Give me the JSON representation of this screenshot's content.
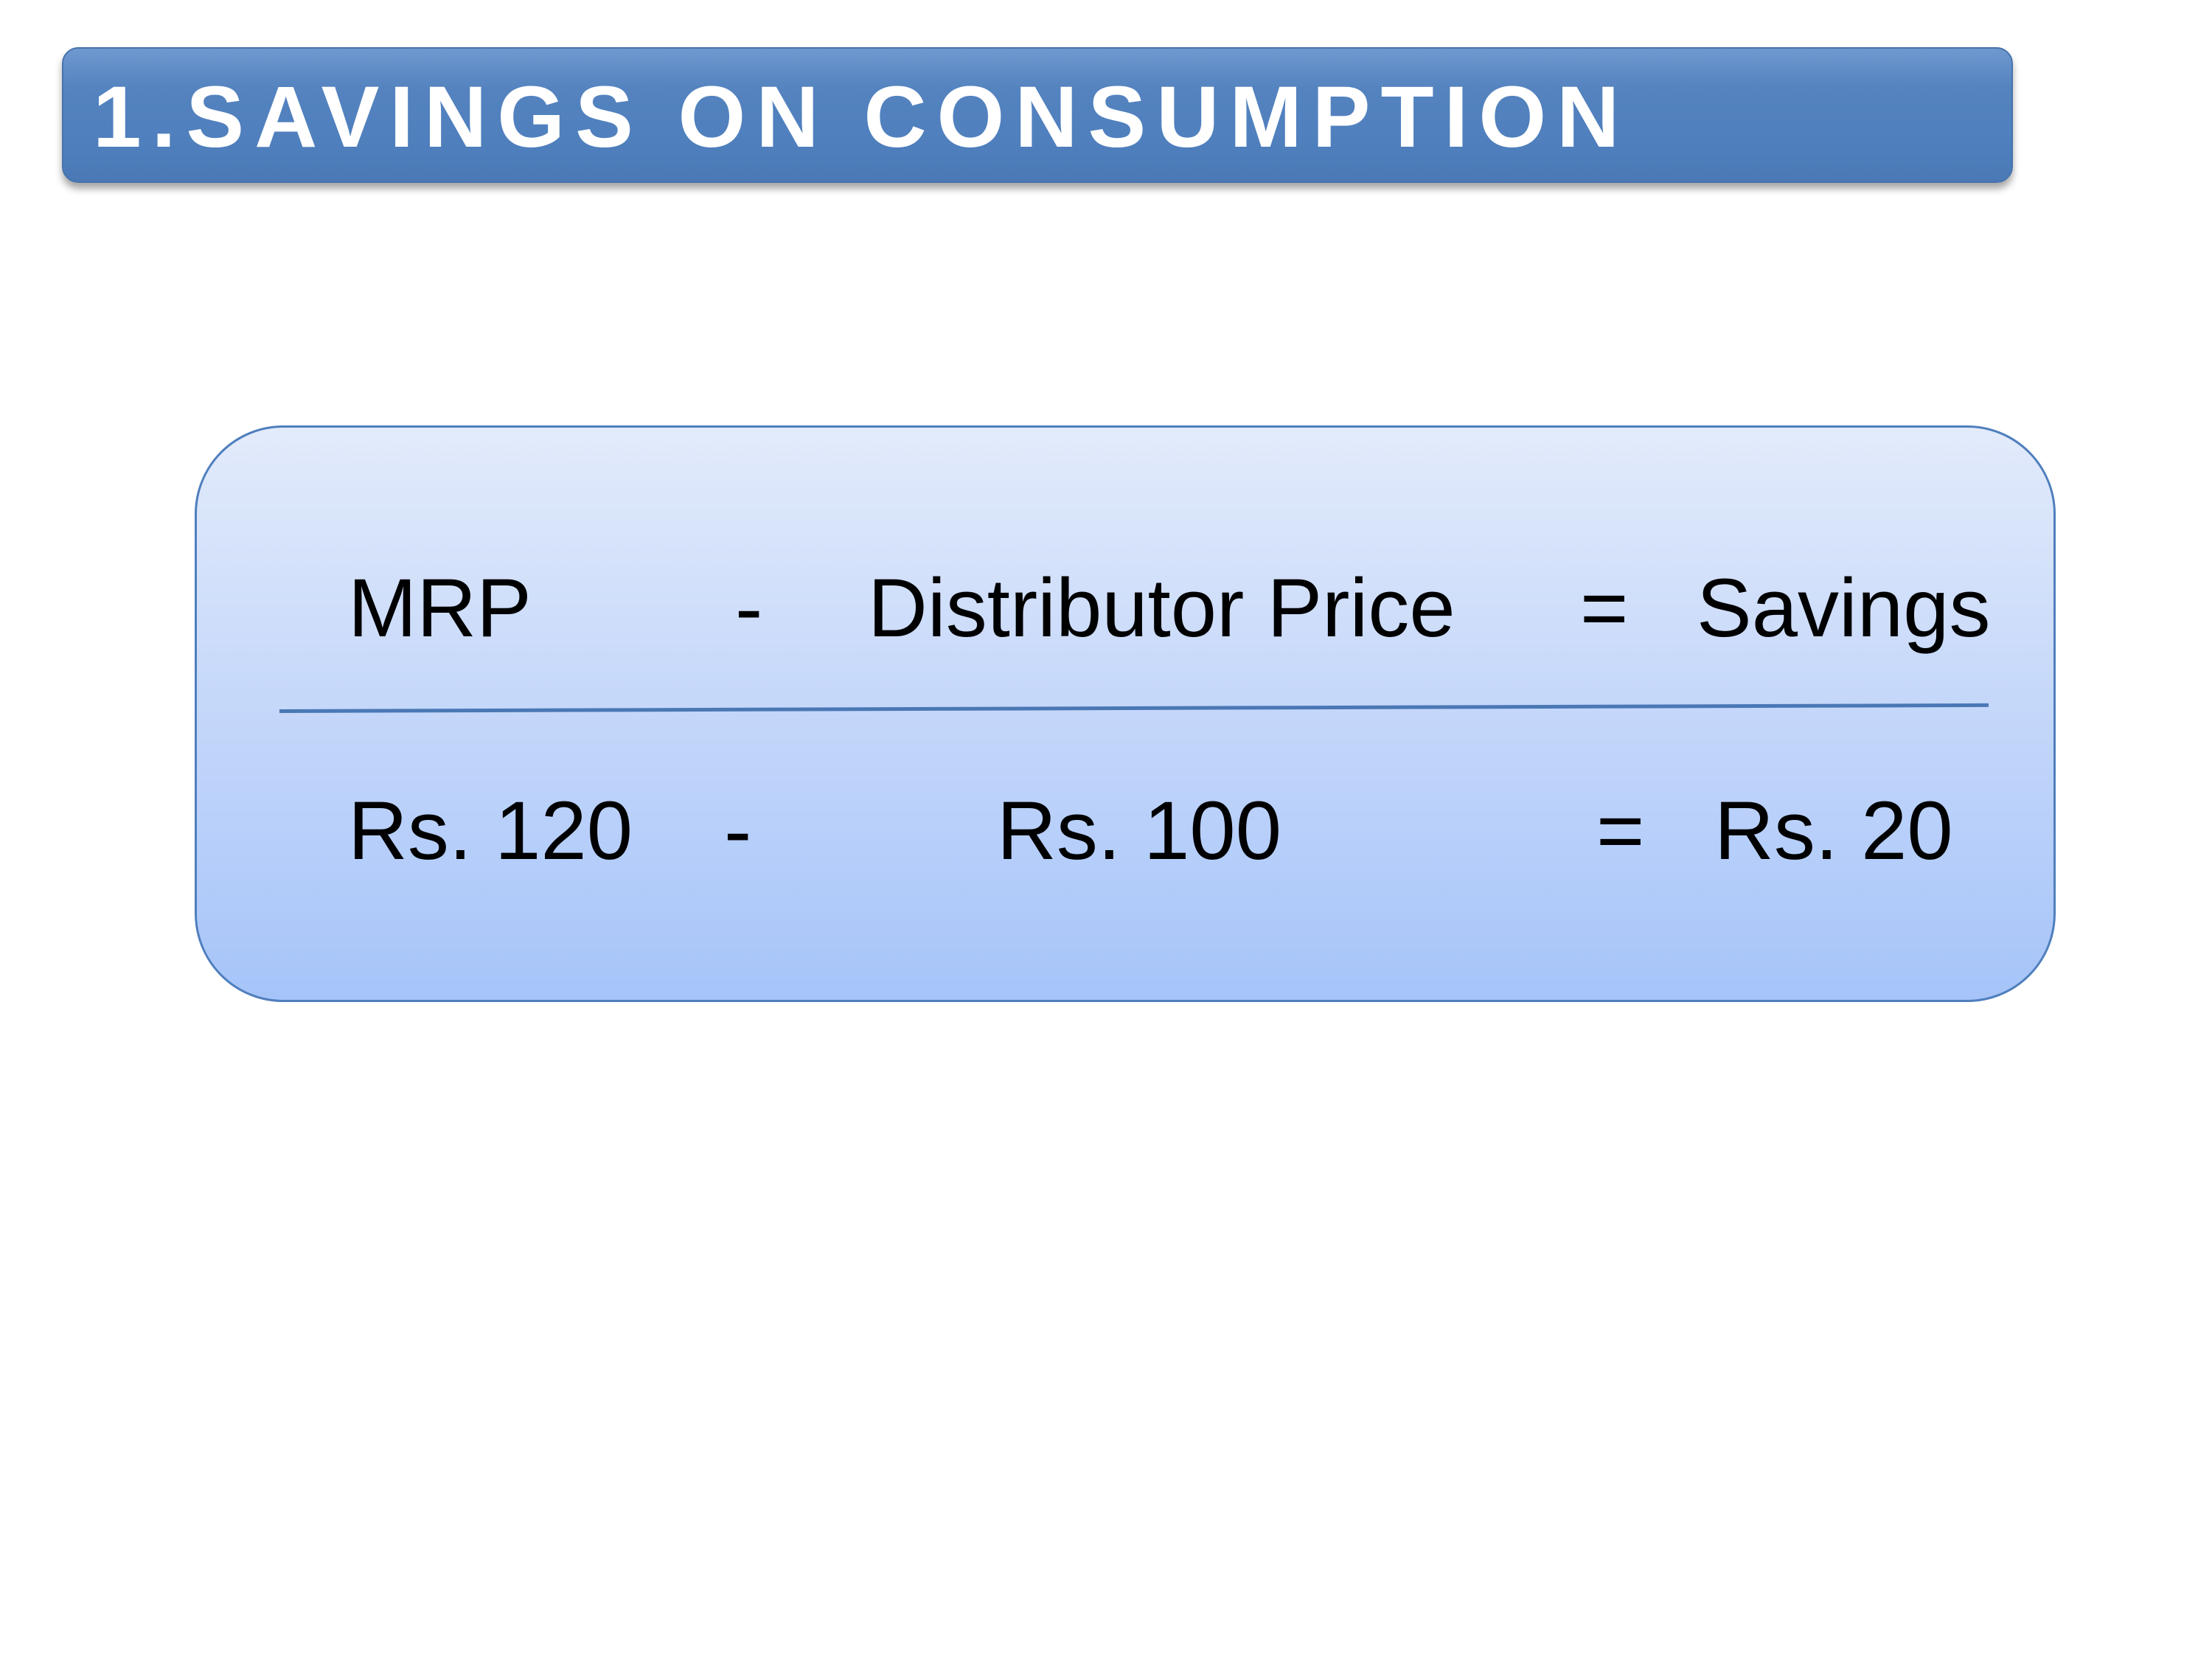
{
  "title": "1.SAVINGS ON CONSUMPTION",
  "formula": {
    "header": {
      "term1": "MRP",
      "op1": "-",
      "term2": "Distributor Price",
      "op2": "=",
      "result": "Savings"
    },
    "values": {
      "term1": "Rs. 120",
      "op1": "-",
      "term2": "Rs. 100",
      "op2": "=",
      "result": "Rs. 20"
    }
  },
  "colors": {
    "banner": "#4f7fbd",
    "box_top": "#e3ebfb",
    "box_bottom": "#a6c4f9",
    "divider": "#4a78b5"
  }
}
